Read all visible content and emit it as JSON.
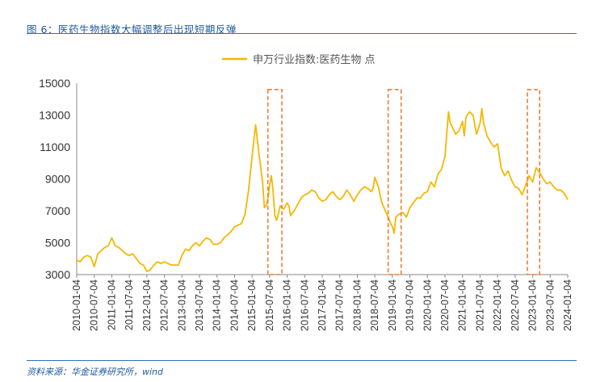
{
  "header": {
    "title": "图 6：医药生物指数大幅调整后出现短期反弹"
  },
  "footer": {
    "source": "资料来源：华金证券研究所，wind"
  },
  "colors": {
    "series": "#F5B800",
    "highlight": "#ED7D31",
    "accent": "#2F6FB3"
  },
  "chart_data": {
    "type": "line",
    "title": "",
    "xlabel": "",
    "ylabel": "",
    "ylim": [
      3000,
      15000
    ],
    "yticks": [
      "15000",
      "13000",
      "11000",
      "9000",
      "7000",
      "5000",
      "3000"
    ],
    "xticks": [
      "2010-01-04",
      "2010-07-04",
      "2011-01-04",
      "2011-07-04",
      "2012-01-04",
      "2012-07-04",
      "2013-01-04",
      "2013-07-04",
      "2014-01-04",
      "2014-07-04",
      "2015-01-04",
      "2015-07-04",
      "2016-01-04",
      "2016-07-04",
      "2017-01-04",
      "2017-07-04",
      "2018-01-04",
      "2018-07-04",
      "2019-01-04",
      "2019-07-04",
      "2020-01-04",
      "2020-07-04",
      "2021-01-04",
      "2021-07-04",
      "2022-01-04",
      "2022-07-04",
      "2023-01-04",
      "2023-07-04",
      "2024-01-04"
    ],
    "legend": {
      "position": "top-center"
    },
    "series": [
      {
        "name": "申万行业指数:医药生物 点",
        "x": [
          2010.0,
          2010.1,
          2010.2,
          2010.3,
          2010.4,
          2010.5,
          2010.6,
          2010.7,
          2010.8,
          2010.9,
          2011.0,
          2011.1,
          2011.2,
          2011.3,
          2011.4,
          2011.5,
          2011.6,
          2011.7,
          2011.8,
          2011.9,
          2012.0,
          2012.1,
          2012.2,
          2012.3,
          2012.4,
          2012.5,
          2012.6,
          2012.7,
          2012.8,
          2012.9,
          2013.0,
          2013.1,
          2013.2,
          2013.3,
          2013.4,
          2013.5,
          2013.6,
          2013.7,
          2013.8,
          2013.9,
          2014.0,
          2014.1,
          2014.2,
          2014.3,
          2014.4,
          2014.5,
          2014.6,
          2014.7,
          2014.8,
          2014.9,
          2015.0,
          2015.1,
          2015.2,
          2015.3,
          2015.35,
          2015.42,
          2015.47,
          2015.5,
          2015.55,
          2015.6,
          2015.65,
          2015.7,
          2015.75,
          2015.8,
          2015.9,
          2016.0,
          2016.05,
          2016.1,
          2016.2,
          2016.3,
          2016.4,
          2016.5,
          2016.6,
          2016.7,
          2016.8,
          2016.9,
          2017.0,
          2017.1,
          2017.2,
          2017.3,
          2017.4,
          2017.5,
          2017.6,
          2017.7,
          2017.8,
          2017.9,
          2018.0,
          2018.1,
          2018.2,
          2018.3,
          2018.4,
          2018.45,
          2018.5,
          2018.6,
          2018.7,
          2018.8,
          2018.9,
          2018.95,
          2019.0,
          2019.05,
          2019.1,
          2019.2,
          2019.3,
          2019.4,
          2019.5,
          2019.6,
          2019.7,
          2019.8,
          2019.9,
          2020.0,
          2020.1,
          2020.2,
          2020.3,
          2020.4,
          2020.5,
          2020.55,
          2020.6,
          2020.65,
          2020.7,
          2020.8,
          2020.9,
          2021.0,
          2021.05,
          2021.1,
          2021.2,
          2021.3,
          2021.4,
          2021.5,
          2021.55,
          2021.6,
          2021.7,
          2021.8,
          2021.9,
          2022.0,
          2022.1,
          2022.2,
          2022.3,
          2022.4,
          2022.5,
          2022.6,
          2022.7,
          2022.8,
          2022.9,
          2023.0,
          2023.1,
          2023.2,
          2023.3,
          2023.4,
          2023.5,
          2023.6,
          2023.7,
          2023.8,
          2023.9,
          2024.0
        ],
        "values": [
          3900,
          3800,
          4100,
          4200,
          4100,
          3500,
          4300,
          4500,
          4700,
          4800,
          5300,
          4800,
          4700,
          4500,
          4300,
          4200,
          4300,
          4000,
          3700,
          3600,
          3200,
          3300,
          3600,
          3800,
          3700,
          3800,
          3700,
          3600,
          3600,
          3600,
          4200,
          4600,
          4500,
          4800,
          5000,
          4800,
          5100,
          5300,
          5200,
          4900,
          4900,
          5000,
          5300,
          5500,
          5700,
          6000,
          6100,
          6200,
          6800,
          8300,
          10400,
          12400,
          10500,
          8800,
          7200,
          7400,
          8000,
          8600,
          9200,
          8200,
          6700,
          6400,
          6800,
          7300,
          7100,
          7500,
          7300,
          6700,
          7000,
          7400,
          7800,
          8000,
          8100,
          8300,
          8200,
          7800,
          7600,
          7700,
          8000,
          8200,
          7900,
          7700,
          7900,
          8300,
          8000,
          7600,
          8000,
          8300,
          8500,
          8400,
          8200,
          8400,
          9100,
          8500,
          7500,
          7000,
          6500,
          6200,
          6000,
          5600,
          6600,
          6800,
          6900,
          6600,
          7200,
          7500,
          7800,
          7800,
          8100,
          8200,
          8800,
          8500,
          9300,
          9600,
          10400,
          11800,
          13200,
          12500,
          12300,
          11800,
          12000,
          12600,
          11700,
          12900,
          13200,
          13000,
          11800,
          12500,
          13400,
          12500,
          11700,
          11300,
          11000,
          11200,
          9700,
          9200,
          9500,
          8900,
          8500,
          8400,
          8000,
          8600,
          9200,
          8800,
          9700,
          9400,
          9000,
          8700,
          8800,
          8500,
          8300,
          8300,
          8100,
          7700
        ]
      }
    ],
    "highlight_ranges": [
      {
        "x0": 2015.45,
        "x1": 2015.85,
        "y0": 3000,
        "y1": 14600
      },
      {
        "x0": 2018.88,
        "x1": 2019.25,
        "y0": 3000,
        "y1": 14600
      },
      {
        "x0": 2022.85,
        "x1": 2023.2,
        "y0": 3000,
        "y1": 14600
      }
    ]
  }
}
